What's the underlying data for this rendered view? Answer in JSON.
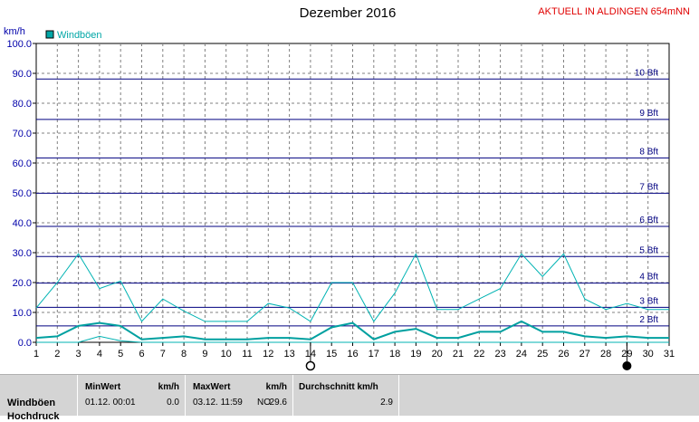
{
  "header": {
    "title": "Dezember 2016",
    "station": "AKTUELL IN ALDINGEN 654mNN"
  },
  "chart_data": {
    "type": "line",
    "ylabel": "km/h",
    "ylim": [
      0,
      100
    ],
    "y_ticks": [
      "0.0",
      "10.0",
      "20.0",
      "30.0",
      "40.0",
      "50.0",
      "60.0",
      "70.0",
      "80.0",
      "90.0",
      "100.0"
    ],
    "x": [
      1,
      2,
      3,
      4,
      5,
      6,
      7,
      8,
      9,
      10,
      11,
      12,
      13,
      14,
      15,
      16,
      17,
      18,
      19,
      20,
      21,
      22,
      23,
      24,
      25,
      26,
      27,
      28,
      29,
      30,
      31
    ],
    "grid": true,
    "legend": {
      "position": "top-left",
      "label": "Windböen",
      "color": "#00a6a6"
    },
    "series": [
      {
        "name": "Windböen",
        "color": "#00b3b3",
        "values": [
          11.5,
          20,
          29.6,
          18,
          20.5,
          7,
          14.5,
          10.5,
          7,
          7,
          7,
          13,
          11.5,
          7,
          20,
          20,
          7,
          16.5,
          29.6,
          11,
          11,
          14.5,
          18,
          29.6,
          22,
          29.6,
          14.5,
          11,
          13,
          11,
          11
        ]
      },
      {
        "name": "",
        "color": "#00a0a0",
        "stroke": 2,
        "values": [
          1.5,
          2,
          5.5,
          6.5,
          5.5,
          1,
          1.5,
          2,
          1,
          1,
          1,
          1.5,
          1.5,
          1,
          5,
          6.5,
          1,
          3.5,
          4.5,
          1.5,
          1.5,
          3.5,
          3.5,
          7,
          3.5,
          3.5,
          2,
          1.5,
          2,
          1.5,
          1.5
        ]
      },
      {
        "name": "",
        "color": "#00b3b3",
        "stroke": 1,
        "values": [
          0,
          0,
          0,
          2,
          0.5,
          0,
          0,
          0,
          0,
          0,
          0,
          0,
          0,
          0,
          0,
          0,
          0,
          0,
          0,
          0,
          0,
          0,
          0,
          0,
          0,
          0,
          0,
          0,
          0,
          0,
          0
        ]
      }
    ],
    "beaufort": [
      {
        "label": "2 Bft",
        "value": 5.5
      },
      {
        "label": "3 Bft",
        "value": 11.7
      },
      {
        "label": "4 Bft",
        "value": 19.8
      },
      {
        "label": "5 Bft",
        "value": 28.7
      },
      {
        "label": "6 Bft",
        "value": 38.8
      },
      {
        "label": "7 Bft",
        "value": 49.9
      },
      {
        "label": "8 Bft",
        "value": 61.7
      },
      {
        "label": "9 Bft",
        "value": 74.6
      },
      {
        "label": "10 Bft",
        "value": 88.1
      }
    ],
    "markers": [
      {
        "type": "new-moon",
        "day": 14
      },
      {
        "type": "full-moon",
        "day": 29
      }
    ]
  },
  "footer": {
    "row_label": "Windböen",
    "row_label2": "Hochdruck",
    "min": {
      "header": "MinWert",
      "unit": "km/h",
      "date": "01.12.  00:01",
      "value": "0.0"
    },
    "max": {
      "header": "MaxWert",
      "unit": "km/h",
      "date": "03.12.  11:59",
      "dir": "NO",
      "value": "29.6"
    },
    "avg": {
      "header": "Durchschnitt km/h",
      "value": "2.9"
    }
  }
}
